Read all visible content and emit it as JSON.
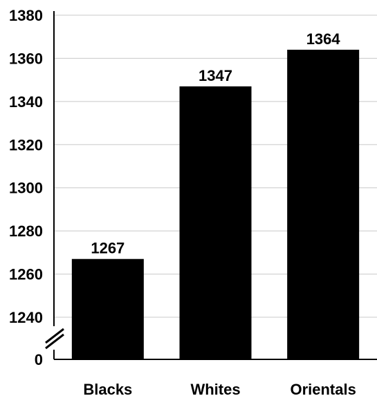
{
  "chart_data": {
    "type": "bar",
    "categories": [
      "Blacks",
      "Whites",
      "Orientals"
    ],
    "values": [
      1267,
      1347,
      1364
    ],
    "data_labels": [
      "1267",
      "1347",
      "1364"
    ],
    "bar_color": "#000000",
    "ylim": [
      1230,
      1380
    ],
    "yticks": [
      1240,
      1260,
      1280,
      1300,
      1320,
      1340,
      1360,
      1380
    ],
    "ytick_labels": [
      "1240",
      "1260",
      "1280",
      "1300",
      "1320",
      "1340",
      "1360",
      "1380"
    ],
    "axis_break": true,
    "axis_zero_label": "0",
    "grid": true,
    "title": "",
    "xlabel": "",
    "ylabel": ""
  }
}
